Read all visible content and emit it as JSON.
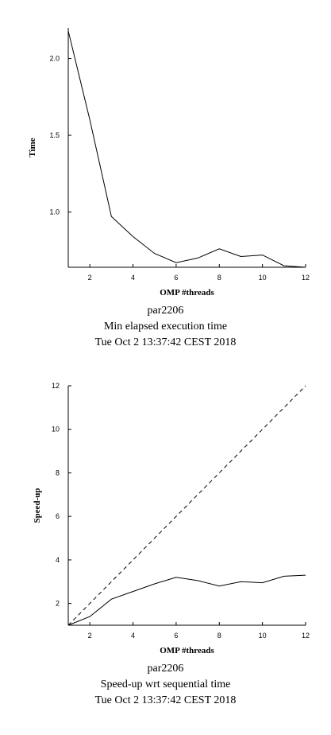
{
  "chart_data": [
    {
      "type": "line",
      "xlabel": "OMP #threads",
      "ylabel": "Time",
      "xlim": [
        1,
        12
      ],
      "ylim": [
        0.64,
        2.2
      ],
      "xticks": [
        2,
        4,
        6,
        8,
        10,
        12
      ],
      "yticks": [
        1.0,
        1.5,
        2.0
      ],
      "ytick_labels": [
        "1.0",
        "1.5",
        "2.0"
      ],
      "grid": false,
      "series": [
        {
          "x": [
            1,
            2,
            3,
            4,
            5,
            6,
            7,
            8,
            9,
            10,
            11,
            12
          ],
          "values": [
            2.18,
            1.6,
            0.97,
            0.84,
            0.73,
            0.67,
            0.7,
            0.76,
            0.71,
            0.72,
            0.65,
            0.64
          ],
          "style": "solid"
        }
      ],
      "caption": [
        "par2206",
        "Min elapsed execution time",
        "Tue Oct  2 13:37:42 CEST 2018"
      ]
    },
    {
      "type": "line",
      "xlabel": "OMP #threads",
      "ylabel": "Speed-up",
      "xlim": [
        1,
        12
      ],
      "ylim": [
        1,
        12
      ],
      "xticks": [
        2,
        4,
        6,
        8,
        10,
        12
      ],
      "yticks": [
        2,
        4,
        6,
        8,
        10,
        12
      ],
      "ytick_labels": [
        "2",
        "4",
        "6",
        "8",
        "10",
        "12"
      ],
      "grid": false,
      "series": [
        {
          "x": [
            1,
            2,
            3,
            4,
            5,
            6,
            7,
            8,
            9,
            10,
            11,
            12
          ],
          "values": [
            1.0,
            1.4,
            2.2,
            2.55,
            2.9,
            3.2,
            3.05,
            2.8,
            3.0,
            2.95,
            3.25,
            3.3
          ],
          "style": "solid"
        },
        {
          "x": [
            1,
            12
          ],
          "values": [
            1,
            12
          ],
          "style": "dashed"
        }
      ],
      "caption": [
        "par2206",
        "Speed-up wrt sequential time",
        "Tue Oct  2 13:37:42 CEST 2018"
      ]
    }
  ]
}
